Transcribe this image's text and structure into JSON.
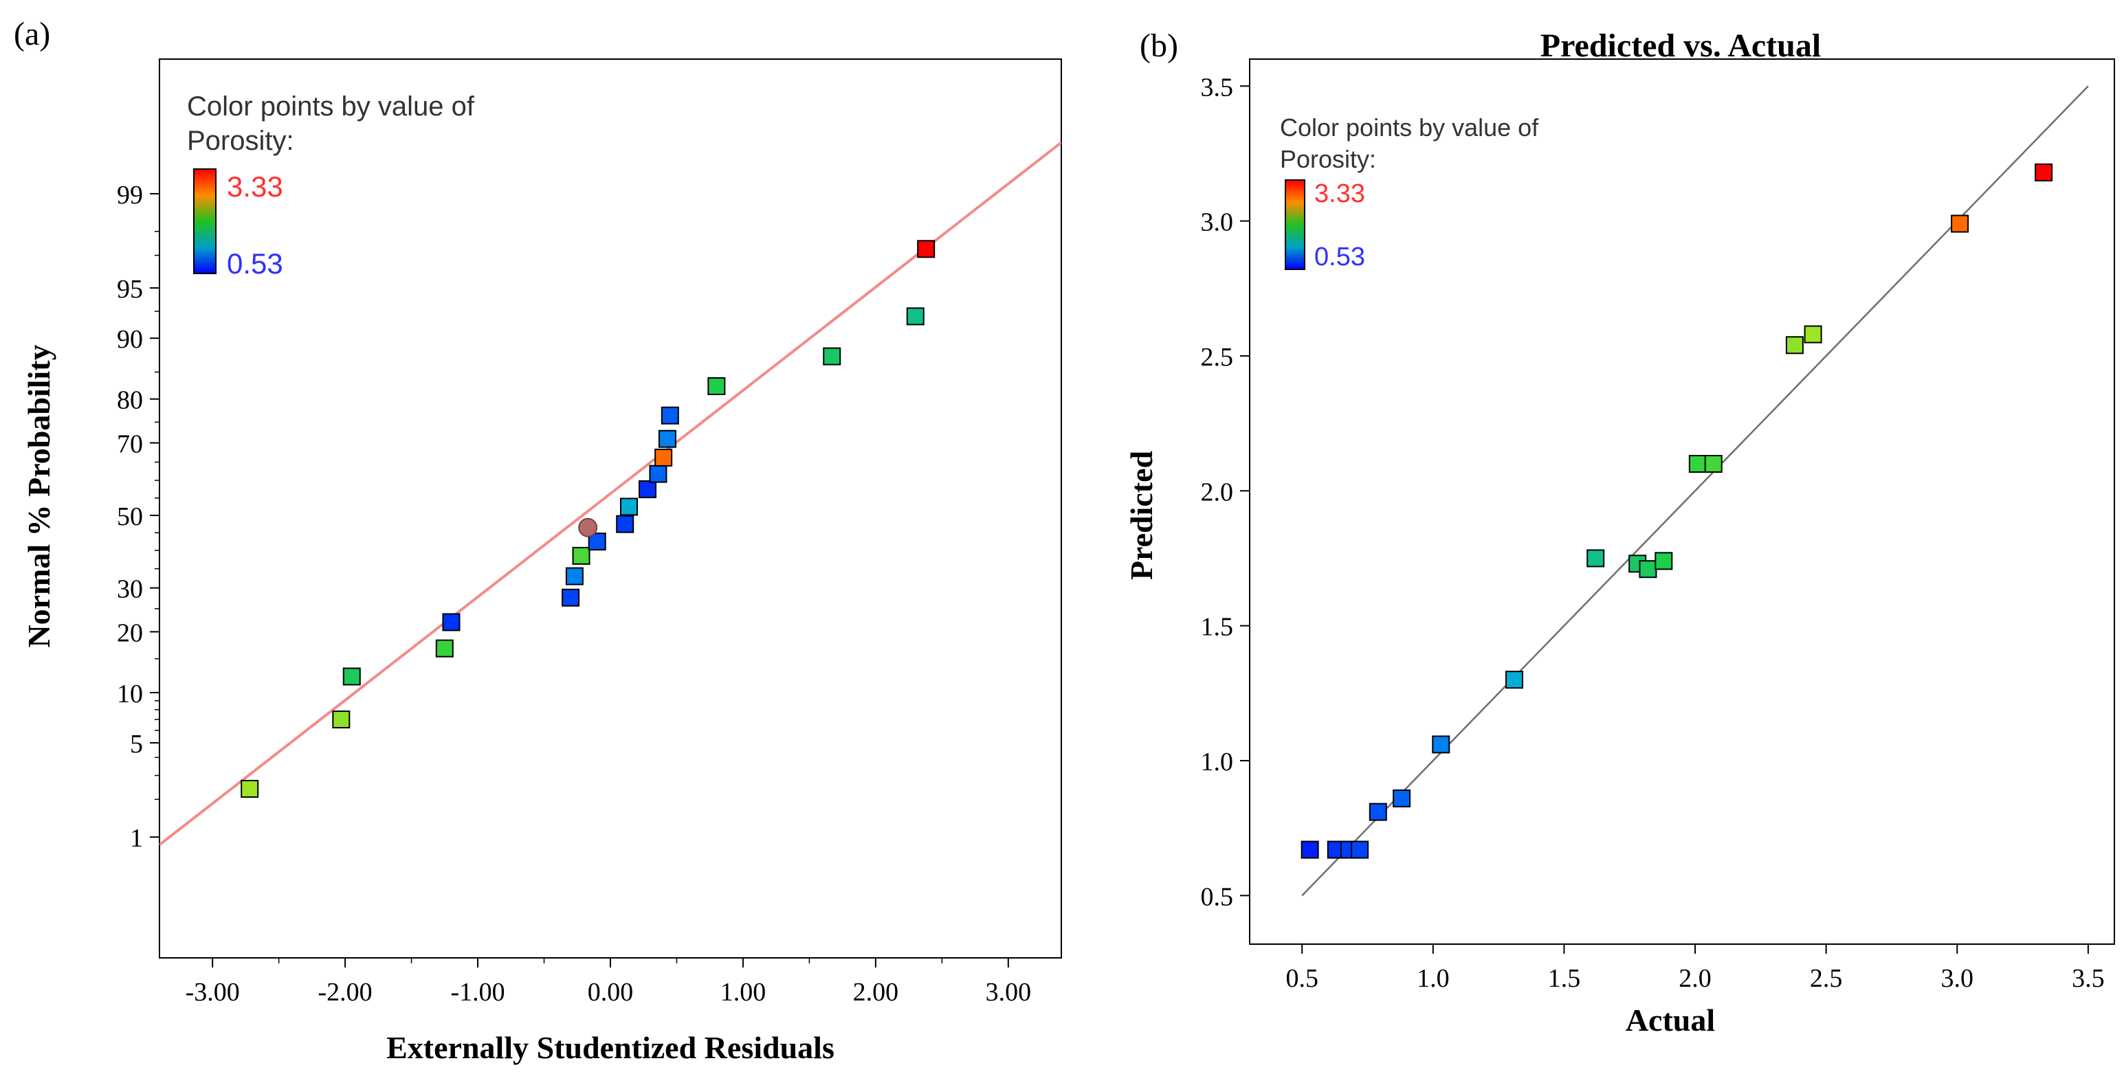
{
  "chart_data": [
    {
      "panel_label": "(a)",
      "type": "scatter",
      "title": "",
      "xlabel": "Externally Studentized Residuals",
      "ylabel": "Normal % Probability",
      "xlim": [
        -3.4,
        3.4
      ],
      "ylim": [
        -3.2,
        3.3
      ],
      "y_scale": "normal-probability",
      "x_ticks": [
        -3,
        -2,
        -1,
        0,
        1,
        2,
        3
      ],
      "x_tick_labels": [
        "-3.00",
        "-2.00",
        "-1.00",
        "0.00",
        "1.00",
        "2.00",
        "3.00"
      ],
      "y_ticks": [
        1,
        5,
        10,
        20,
        30,
        50,
        70,
        80,
        90,
        95,
        99
      ],
      "y_tick_labels": [
        "1",
        "5",
        "10",
        "20",
        "30",
        "50",
        "70",
        "80",
        "90",
        "95",
        "99"
      ],
      "legend": {
        "title_line1": "Color points by value of",
        "title_line2": "Porosity:",
        "max_label": "3.33",
        "min_label": "0.53",
        "max_color": "#ff3030",
        "min_color": "#3030ff",
        "placement": "top-left"
      },
      "reference_line": {
        "x": [
          -3.4,
          3.4
        ],
        "y_percent": [
          0.86,
          99.65
        ],
        "color": "#f08080"
      },
      "points": [
        {
          "x": -2.72,
          "y": 2.4,
          "porosity": 2.45
        },
        {
          "x": -2.03,
          "y": 7.0,
          "porosity": 2.38
        },
        {
          "x": -1.95,
          "y": 12.2,
          "porosity": 1.83
        },
        {
          "x": -1.25,
          "y": 16.8,
          "porosity": 2.02
        },
        {
          "x": -1.2,
          "y": 22.0,
          "porosity": 0.63
        },
        {
          "x": -0.3,
          "y": 27.6,
          "porosity": 0.72
        },
        {
          "x": -0.27,
          "y": 33.0,
          "porosity": 1.03
        },
        {
          "x": -0.22,
          "y": 38.5,
          "porosity": 2.1
        },
        {
          "x": -0.1,
          "y": 42.5,
          "porosity": 0.79
        },
        {
          "x": -0.17,
          "y": 46.5,
          "porosity": 0.53,
          "marker": "circle",
          "color": "#b46a6a"
        },
        {
          "x": 0.11,
          "y": 47.5,
          "porosity": 0.68
        },
        {
          "x": 0.14,
          "y": 52.5,
          "porosity": 1.31
        },
        {
          "x": 0.28,
          "y": 57.5,
          "porosity": 0.6
        },
        {
          "x": 0.36,
          "y": 61.8,
          "porosity": 0.88
        },
        {
          "x": 0.4,
          "y": 66.2,
          "porosity": 3.01
        },
        {
          "x": 0.43,
          "y": 71.0,
          "porosity": 1.03
        },
        {
          "x": 0.45,
          "y": 76.5,
          "porosity": 0.85
        },
        {
          "x": 0.8,
          "y": 82.5,
          "porosity": 1.88
        },
        {
          "x": 1.67,
          "y": 87.5,
          "porosity": 1.78
        },
        {
          "x": 2.3,
          "y": 92.5,
          "porosity": 1.62
        },
        {
          "x": 2.38,
          "y": 97.3,
          "porosity": 3.33
        }
      ]
    },
    {
      "panel_label": "(b)",
      "type": "scatter",
      "title": "Predicted vs. Actual",
      "xlabel": "Actual",
      "ylabel": "Predicted",
      "xlim": [
        0.3,
        3.6
      ],
      "ylim": [
        0.32,
        3.6
      ],
      "x_ticks": [
        0.5,
        1.0,
        1.5,
        2.0,
        2.5,
        3.0,
        3.5
      ],
      "x_tick_labels": [
        "0.5",
        "1.0",
        "1.5",
        "2.0",
        "2.5",
        "3.0",
        "3.5"
      ],
      "y_ticks": [
        0.5,
        1.0,
        1.5,
        2.0,
        2.5,
        3.0,
        3.5
      ],
      "y_tick_labels": [
        "0.5",
        "1.0",
        "1.5",
        "2.0",
        "2.5",
        "3.0",
        "3.5"
      ],
      "legend": {
        "title_line1": "Color points by value of",
        "title_line2": "Porosity:",
        "max_label": "3.33",
        "min_label": "0.53",
        "max_color": "#ff3030",
        "min_color": "#3030ff",
        "placement": "top-left"
      },
      "reference_line": {
        "x": [
          0.5,
          3.5
        ],
        "y": [
          0.5,
          3.5
        ],
        "color": "#707070"
      },
      "points": [
        {
          "x": 0.53,
          "y": 0.67,
          "porosity": 0.53
        },
        {
          "x": 0.63,
          "y": 0.67,
          "porosity": 0.63
        },
        {
          "x": 0.68,
          "y": 0.67,
          "porosity": 0.68
        },
        {
          "x": 0.72,
          "y": 0.67,
          "porosity": 0.72
        },
        {
          "x": 0.79,
          "y": 0.81,
          "porosity": 0.79
        },
        {
          "x": 0.88,
          "y": 0.86,
          "porosity": 0.88
        },
        {
          "x": 1.03,
          "y": 1.06,
          "porosity": 1.03
        },
        {
          "x": 1.31,
          "y": 1.3,
          "porosity": 1.31
        },
        {
          "x": 1.62,
          "y": 1.75,
          "porosity": 1.62
        },
        {
          "x": 1.78,
          "y": 1.73,
          "porosity": 1.78
        },
        {
          "x": 1.82,
          "y": 1.71,
          "porosity": 1.82
        },
        {
          "x": 1.88,
          "y": 1.74,
          "porosity": 1.88
        },
        {
          "x": 2.01,
          "y": 2.1,
          "porosity": 2.01
        },
        {
          "x": 2.07,
          "y": 2.1,
          "porosity": 2.07
        },
        {
          "x": 2.38,
          "y": 2.54,
          "porosity": 2.38
        },
        {
          "x": 2.45,
          "y": 2.58,
          "porosity": 2.45
        },
        {
          "x": 3.01,
          "y": 2.99,
          "porosity": 3.01
        },
        {
          "x": 3.33,
          "y": 3.18,
          "porosity": 3.33
        }
      ]
    }
  ]
}
